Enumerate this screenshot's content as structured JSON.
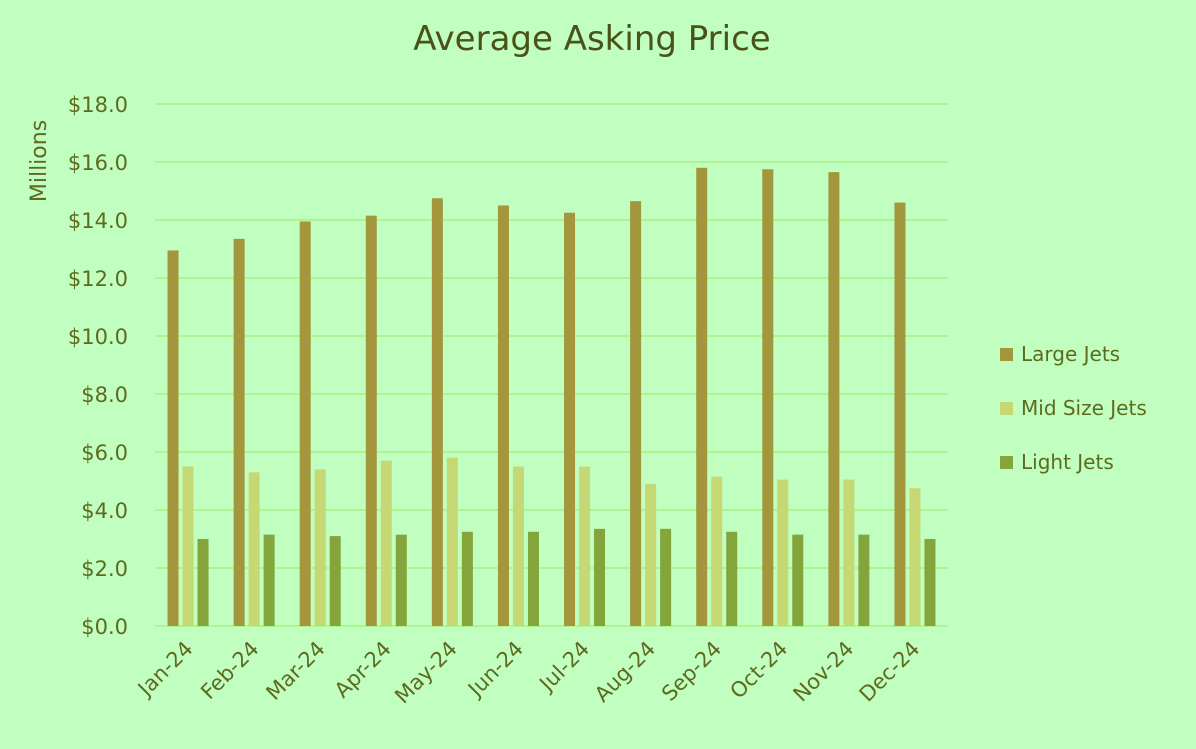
{
  "chart_data": {
    "type": "bar",
    "title": "Average Asking Price",
    "ylabel": "Millions",
    "xlabel": "",
    "ylim": [
      0,
      18
    ],
    "y_ticks": [
      0,
      2,
      4,
      6,
      8,
      10,
      12,
      14,
      16,
      18
    ],
    "y_tick_labels": [
      "$0.0",
      "$2.0",
      "$4.0",
      "$6.0",
      "$8.0",
      "$10.0",
      "$12.0",
      "$14.0",
      "$16.0",
      "$18.0"
    ],
    "categories": [
      "Jan-24",
      "Feb-24",
      "Mar-24",
      "Apr-24",
      "May-24",
      "Jun-24",
      "Jul-24",
      "Aug-24",
      "Sep-24",
      "Oct-24",
      "Nov-24",
      "Dec-24"
    ],
    "series": [
      {
        "name": "Large Jets",
        "color": "#a3963c",
        "values": [
          12.95,
          13.35,
          13.95,
          14.15,
          14.75,
          14.5,
          14.25,
          14.65,
          15.8,
          15.75,
          15.65,
          14.6
        ]
      },
      {
        "name": "Mid Size Jets",
        "color": "#c6d874",
        "values": [
          5.5,
          5.3,
          5.4,
          5.7,
          5.8,
          5.5,
          5.5,
          4.9,
          5.15,
          5.05,
          5.05,
          4.75
        ]
      },
      {
        "name": "Light Jets",
        "color": "#84a43c",
        "values": [
          3.0,
          3.15,
          3.1,
          3.15,
          3.25,
          3.25,
          3.35,
          3.35,
          3.25,
          3.15,
          3.15,
          3.0
        ]
      }
    ],
    "grid": true,
    "legend_position": "right",
    "colors": {
      "background": "#c0ffc0",
      "gridline": "#a8f080",
      "text": "#5e6a1e",
      "title": "#4a5218"
    }
  }
}
